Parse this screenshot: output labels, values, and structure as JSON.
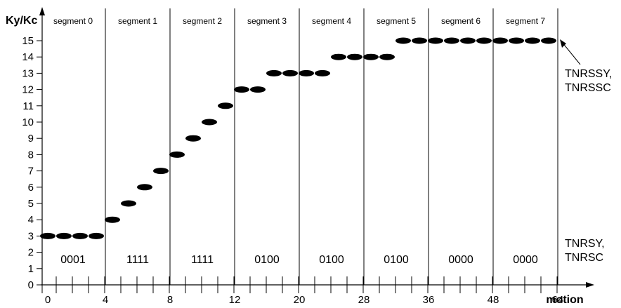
{
  "chart_data": {
    "type": "scatter",
    "ylabel": "Ky/Kc",
    "xlabel": "motion",
    "ylim": [
      0,
      15
    ],
    "y_ticks": [
      "0",
      "1",
      "2",
      "3",
      "4",
      "5",
      "6",
      "7",
      "8",
      "9",
      "10",
      "11",
      "12",
      "13",
      "14",
      "15"
    ],
    "x_tick_labels": [
      "0",
      "4",
      "8",
      "12",
      "20",
      "28",
      "36",
      "48",
      "64"
    ],
    "segments": [
      {
        "name": "segment 0",
        "code": "0001",
        "points": [
          3,
          3,
          3,
          3
        ]
      },
      {
        "name": "segment 1",
        "code": "1111",
        "points": [
          4,
          5,
          6,
          7
        ]
      },
      {
        "name": "segment 2",
        "code": "1111",
        "points": [
          8,
          9,
          10,
          11
        ]
      },
      {
        "name": "segment 3",
        "code": "0100",
        "points": [
          12,
          12,
          13,
          13
        ]
      },
      {
        "name": "segment 4",
        "code": "0100",
        "points": [
          13,
          13,
          14,
          14
        ]
      },
      {
        "name": "segment 5",
        "code": "0100",
        "points": [
          14,
          14,
          15,
          15
        ]
      },
      {
        "name": "segment 6",
        "code": "0000",
        "points": [
          15,
          15,
          15,
          15
        ]
      },
      {
        "name": "segment 7",
        "code": "0000",
        "points": [
          15,
          15,
          15,
          15
        ]
      }
    ],
    "annotations": {
      "top_line1": "TNRSSY,",
      "top_line2": "TNRSSC",
      "bottom_line1": "TNRSY,",
      "bottom_line2": "TNRSC"
    }
  }
}
